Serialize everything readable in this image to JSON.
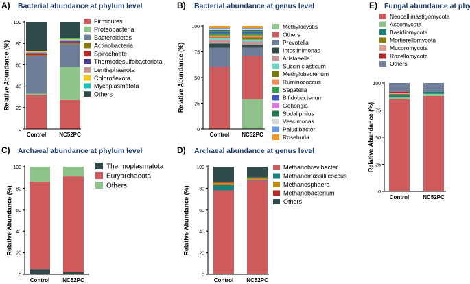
{
  "colors": {
    "title": "#1f3a6b"
  },
  "chart_data": [
    {
      "id": "A",
      "type": "bar",
      "stacked": true,
      "letter": "A)",
      "title": "Bacterial abundance at phylum level",
      "ylabel": "Relative Abundance (%)",
      "ylim": [
        0,
        100
      ],
      "yticks": [
        "0",
        "20",
        "40",
        "60",
        "80",
        "100"
      ],
      "categories": [
        "Control",
        "NC52PC"
      ],
      "legend_position": "right",
      "series": [
        {
          "name": "Firmicutes",
          "color": "#cf5c5c",
          "values": [
            32,
            27
          ]
        },
        {
          "name": "Proteobacteria",
          "color": "#8ec38a",
          "values": [
            1,
            31
          ]
        },
        {
          "name": "Bacteroidetes",
          "color": "#6f7f99",
          "values": [
            35,
            21
          ]
        },
        {
          "name": "Actinobacteria",
          "color": "#8a7a10",
          "values": [
            1,
            1
          ]
        },
        {
          "name": "Spirochaete",
          "color": "#b02a2a",
          "values": [
            1,
            1
          ]
        },
        {
          "name": "Thermodesulfobacteriota",
          "color": "#4a3a8a",
          "values": [
            1,
            1
          ]
        },
        {
          "name": "Lentisphaerota",
          "color": "#c49393",
          "values": [
            1,
            1
          ]
        },
        {
          "name": "Chloroflexota",
          "color": "#f2c81e",
          "values": [
            1,
            1
          ]
        },
        {
          "name": "Mycoplasmatota",
          "color": "#1fbcb4",
          "values": [
            0,
            1
          ]
        },
        {
          "name": "Others",
          "color": "#2f4a48",
          "values": [
            27,
            15
          ]
        }
      ]
    },
    {
      "id": "B",
      "type": "bar",
      "stacked": true,
      "letter": "B)",
      "title": "Bacterial abundance at genus level",
      "ylabel": "Relative Abundance (%)",
      "ylim": [
        0,
        100
      ],
      "yticks": [
        "0",
        "25",
        "50",
        "75",
        "100"
      ],
      "categories": [
        "Control",
        "NC52PC"
      ],
      "legend_position": "right",
      "series": [
        {
          "name": "Methylocystis",
          "color": "#8ec38a",
          "values": [
            0,
            29
          ]
        },
        {
          "name": "Others",
          "color": "#cf5c5c",
          "values": [
            60,
            42
          ]
        },
        {
          "name": "Prevotella",
          "color": "#6f7f99",
          "values": [
            19,
            8
          ]
        },
        {
          "name": "Intestinimonas",
          "color": "#2f4a48",
          "values": [
            4,
            3
          ]
        },
        {
          "name": "Aristaeella",
          "color": "#c49393",
          "values": [
            3,
            3
          ]
        },
        {
          "name": "Succiniclasticum",
          "color": "#6fd6c4",
          "values": [
            2,
            2
          ]
        },
        {
          "name": "Methylobacterium",
          "color": "#7a7a0a",
          "values": [
            1,
            2
          ]
        },
        {
          "name": "Ruminococcus",
          "color": "#f08a5a",
          "values": [
            2,
            2
          ]
        },
        {
          "name": "Segatella",
          "color": "#2ea24a",
          "values": [
            2,
            2
          ]
        },
        {
          "name": "Bifidobacterium",
          "color": "#3f57c8",
          "values": [
            1,
            1
          ]
        },
        {
          "name": "Gehongia",
          "color": "#e07ae0",
          "values": [
            1,
            1
          ]
        },
        {
          "name": "Sodaliphilus",
          "color": "#1f7a4a",
          "values": [
            1,
            1
          ]
        },
        {
          "name": "Vescimonas",
          "color": "#d6d6d6",
          "values": [
            1,
            1
          ]
        },
        {
          "name": "Paludibacter",
          "color": "#6a9be0",
          "values": [
            1,
            1
          ]
        },
        {
          "name": "Roseburia",
          "color": "#f5941e",
          "values": [
            2,
            2
          ]
        }
      ]
    },
    {
      "id": "C",
      "type": "bar",
      "stacked": true,
      "letter": "C)",
      "title": "Archaeal abundance at phylum level",
      "ylabel": "Relative Abundance (%)",
      "ylim": [
        0,
        100
      ],
      "yticks": [
        "0",
        "20",
        "40",
        "60",
        "80",
        "100"
      ],
      "categories": [
        "Control",
        "NC52PC"
      ],
      "legend_position": "right",
      "series": [
        {
          "name": "Thermoplasmatota",
          "color": "#2f4a48",
          "values": [
            5,
            2
          ]
        },
        {
          "name": "Euryarchaeota",
          "color": "#cf5c5c",
          "values": [
            81,
            89
          ]
        },
        {
          "name": "Others",
          "color": "#8ec38a",
          "values": [
            14,
            9
          ]
        }
      ]
    },
    {
      "id": "D",
      "type": "bar",
      "stacked": true,
      "letter": "D)",
      "title": "Archaeal abundance at genus level",
      "ylabel": "Relative Abundance (%)",
      "ylim": [
        0,
        100
      ],
      "yticks": [
        "0",
        "20",
        "40",
        "60",
        "80",
        "100"
      ],
      "categories": [
        "Control",
        "NC52PC"
      ],
      "legend_position": "right",
      "series": [
        {
          "name": "Methanobrevibacter",
          "color": "#cf5c5c",
          "values": [
            78,
            87
          ]
        },
        {
          "name": "Methanomassiliicoccus",
          "color": "#1a8080",
          "values": [
            5,
            1
          ]
        },
        {
          "name": "Methanosphaera",
          "color": "#c08a1e",
          "values": [
            2,
            2
          ]
        },
        {
          "name": "Methanobacterium",
          "color": "#b02a2a",
          "values": [
            1,
            0
          ]
        },
        {
          "name": "Others",
          "color": "#2f4a48",
          "values": [
            14,
            10
          ]
        }
      ]
    },
    {
      "id": "E",
      "type": "bar",
      "stacked": true,
      "letter": "E)",
      "title": "Fungal abundance at phylum level",
      "ylabel": "Relative Abundance (%)",
      "ylim": [
        0,
        100
      ],
      "yticks": [
        "0",
        "25",
        "50",
        "75",
        "100"
      ],
      "categories": [
        "Control",
        "NC52PC"
      ],
      "legend_position": "top",
      "series": [
        {
          "name": "Neocallimastigomycota",
          "color": "#cf5c5c",
          "values": [
            85,
            88
          ]
        },
        {
          "name": "Ascomycota",
          "color": "#8ec38a",
          "values": [
            2,
            2
          ]
        },
        {
          "name": "Basidiomycota",
          "color": "#1a8080",
          "values": [
            2,
            2
          ]
        },
        {
          "name": "Mortierellomycota",
          "color": "#8a7a10",
          "values": [
            1,
            0
          ]
        },
        {
          "name": "Mucoromycota",
          "color": "#e0a090",
          "values": [
            1,
            0
          ]
        },
        {
          "name": "Rozellomycota",
          "color": "#b02a2a",
          "values": [
            1,
            0
          ]
        },
        {
          "name": "Others",
          "color": "#6f7f99",
          "values": [
            8,
            8
          ]
        }
      ]
    }
  ]
}
